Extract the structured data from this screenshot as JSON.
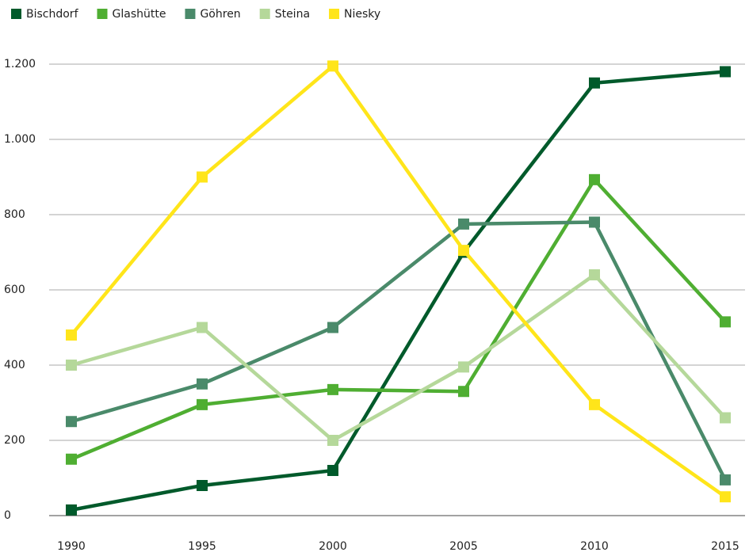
{
  "chart_data": {
    "type": "line",
    "x": [
      1990,
      1995,
      2000,
      2005,
      2010,
      2015
    ],
    "series": [
      {
        "name": "Bischdorf",
        "color": "#005a2b",
        "values": [
          15,
          80,
          120,
          700,
          1150,
          1180
        ]
      },
      {
        "name": "Glashütte",
        "color": "#4fae32",
        "values": [
          150,
          295,
          335,
          330,
          893,
          515
        ]
      },
      {
        "name": "Göhren",
        "color": "#4a8a6a",
        "values": [
          250,
          350,
          500,
          775,
          780,
          95
        ]
      },
      {
        "name": "Steina",
        "color": "#b5d89a",
        "values": [
          400,
          500,
          200,
          395,
          640,
          260
        ]
      },
      {
        "name": "Niesky",
        "color": "#ffe51a",
        "values": [
          480,
          900,
          1195,
          705,
          295,
          50
        ]
      }
    ],
    "xlim": [
      1990,
      2015
    ],
    "xticks": [
      1990,
      1995,
      2000,
      2005,
      2010,
      2015
    ],
    "ylim": [
      0,
      1200
    ],
    "yticks": [
      0,
      200,
      400,
      600,
      800,
      {
        "value": 1000,
        "label": "1.000"
      },
      {
        "value": 1200,
        "label": "1.200"
      }
    ],
    "grid": true,
    "legend": "top-left"
  }
}
